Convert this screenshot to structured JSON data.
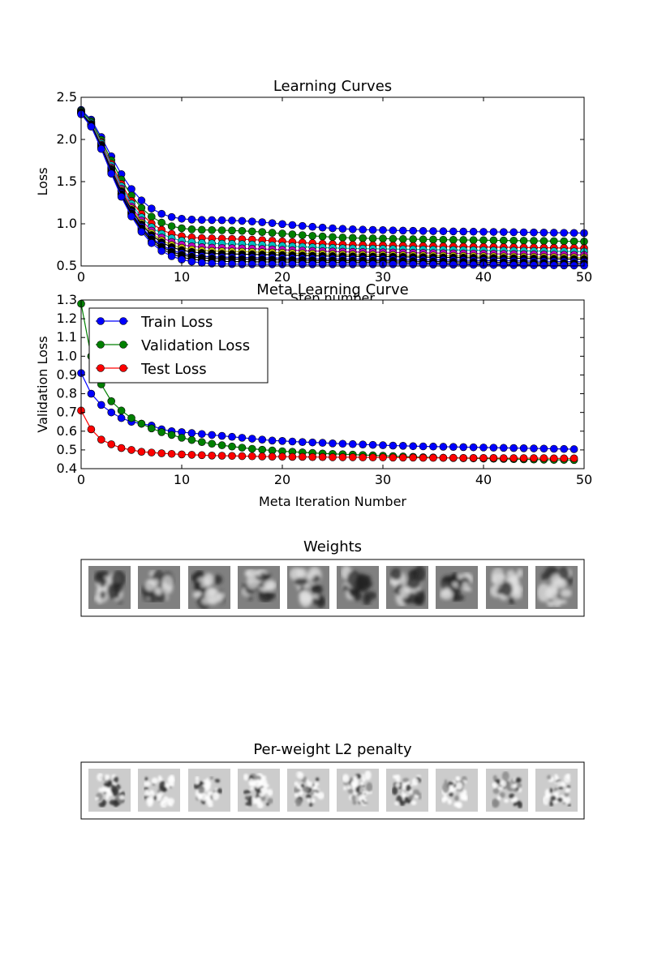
{
  "figure_note": "",
  "chart_data": [
    {
      "type": "line",
      "title": "Learning Curves",
      "xlabel": "Step number",
      "ylabel": "Loss",
      "xlim": [
        0,
        50
      ],
      "ylim": [
        0.5,
        2.5
      ],
      "xticks": [
        "0",
        "10",
        "20",
        "30",
        "40",
        "50"
      ],
      "yticks": [
        "0.5",
        "1.0",
        "1.5",
        "2.0",
        "2.5"
      ],
      "grid": false,
      "marker": "circle",
      "series_note": "",
      "series": [
        {
          "color": "#0000ff",
          "start": 2.35,
          "end": 0.92,
          "k": 0.55,
          "bump": 0.12
        },
        {
          "color": "#008000",
          "start": 2.34,
          "end": 0.82,
          "k": 0.55,
          "bump": 0.1
        },
        {
          "color": "#ff0000",
          "start": 2.33,
          "end": 0.74,
          "k": 0.55,
          "bump": 0.08
        },
        {
          "color": "#00bfbf",
          "start": 2.33,
          "end": 0.7,
          "k": 0.55,
          "bump": 0.06
        },
        {
          "color": "#bf00bf",
          "start": 2.32,
          "end": 0.66,
          "k": 0.55,
          "bump": 0.05
        },
        {
          "color": "#bfbf00",
          "start": 2.32,
          "end": 0.63,
          "k": 0.55,
          "bump": 0.04
        },
        {
          "color": "#000000",
          "start": 2.32,
          "end": 0.61,
          "k": 0.55,
          "bump": 0.03
        },
        {
          "color": "#0000ff",
          "start": 2.31,
          "end": 0.58,
          "k": 0.55,
          "bump": 0.02
        },
        {
          "color": "#000000",
          "start": 2.31,
          "end": 0.56,
          "k": 0.55,
          "bump": 0.02
        },
        {
          "color": "#000000",
          "start": 2.31,
          "end": 0.54,
          "k": 0.55,
          "bump": 0.01
        },
        {
          "color": "#0000ff",
          "start": 2.3,
          "end": 0.52,
          "k": 0.55,
          "bump": 0.0
        }
      ]
    },
    {
      "type": "line",
      "title": "Meta Learning Curve",
      "xlabel": "Meta Iteration Number",
      "ylabel": "Validation Loss",
      "xlim": [
        0,
        50
      ],
      "ylim": [
        0.4,
        1.3
      ],
      "xticks": [
        "0",
        "10",
        "20",
        "30",
        "40",
        "50"
      ],
      "yticks": [
        "0.4",
        "0.5",
        "0.6",
        "0.7",
        "0.8",
        "0.9",
        "1.0",
        "1.1",
        "1.2",
        "1.3"
      ],
      "grid": false,
      "legend": "upper-left",
      "series": [
        {
          "name": "Train Loss",
          "color": "#0000ff",
          "x": [
            0,
            1,
            2,
            3,
            4,
            5,
            6,
            7,
            8,
            9,
            10,
            11,
            12,
            13,
            14,
            15,
            16,
            17,
            18,
            19,
            20,
            21,
            22,
            23,
            24,
            25,
            26,
            27,
            28,
            29,
            30,
            31,
            32,
            33,
            34,
            35,
            36,
            37,
            38,
            39,
            40,
            41,
            42,
            43,
            44,
            45,
            46,
            47,
            48,
            49
          ],
          "values": [
            0.91,
            0.8,
            0.74,
            0.7,
            0.67,
            0.65,
            0.64,
            0.63,
            0.61,
            0.6,
            0.595,
            0.59,
            0.585,
            0.58,
            0.575,
            0.57,
            0.565,
            0.56,
            0.555,
            0.55,
            0.548,
            0.545,
            0.542,
            0.54,
            0.538,
            0.535,
            0.533,
            0.531,
            0.529,
            0.527,
            0.525,
            0.523,
            0.522,
            0.52,
            0.519,
            0.518,
            0.517,
            0.516,
            0.515,
            0.514,
            0.513,
            0.512,
            0.511,
            0.51,
            0.509,
            0.508,
            0.507,
            0.506,
            0.505,
            0.504
          ]
        },
        {
          "name": "Validation Loss",
          "color": "#008000",
          "x": [
            0,
            1,
            2,
            3,
            4,
            5,
            6,
            7,
            8,
            9,
            10,
            11,
            12,
            13,
            14,
            15,
            16,
            17,
            18,
            19,
            20,
            21,
            22,
            23,
            24,
            25,
            26,
            27,
            28,
            29,
            30,
            31,
            32,
            33,
            34,
            35,
            36,
            37,
            38,
            39,
            40,
            41,
            42,
            43,
            44,
            45,
            46,
            47,
            48,
            49
          ],
          "values": [
            1.28,
            1.0,
            0.85,
            0.76,
            0.71,
            0.67,
            0.64,
            0.615,
            0.595,
            0.58,
            0.565,
            0.553,
            0.542,
            0.533,
            0.525,
            0.518,
            0.512,
            0.506,
            0.501,
            0.497,
            0.493,
            0.49,
            0.487,
            0.484,
            0.481,
            0.479,
            0.477,
            0.475,
            0.473,
            0.471,
            0.469,
            0.467,
            0.465,
            0.463,
            0.461,
            0.46,
            0.458,
            0.457,
            0.456,
            0.455,
            0.454,
            0.453,
            0.452,
            0.451,
            0.45,
            0.449,
            0.448,
            0.447,
            0.447,
            0.446
          ]
        },
        {
          "name": "Test Loss",
          "color": "#ff0000",
          "x": [
            0,
            1,
            2,
            3,
            4,
            5,
            6,
            7,
            8,
            9,
            10,
            11,
            12,
            13,
            14,
            15,
            16,
            17,
            18,
            19,
            20,
            21,
            22,
            23,
            24,
            25,
            26,
            27,
            28,
            29,
            30,
            31,
            32,
            33,
            34,
            35,
            36,
            37,
            38,
            39,
            40,
            41,
            42,
            43,
            44,
            45,
            46,
            47,
            48,
            49
          ],
          "values": [
            0.71,
            0.61,
            0.555,
            0.53,
            0.51,
            0.5,
            0.49,
            0.486,
            0.482,
            0.479,
            0.476,
            0.474,
            0.472,
            0.47,
            0.469,
            0.468,
            0.467,
            0.466,
            0.465,
            0.464,
            0.464,
            0.463,
            0.463,
            0.462,
            0.462,
            0.461,
            0.461,
            0.461,
            0.46,
            0.46,
            0.46,
            0.459,
            0.459,
            0.459,
            0.458,
            0.458,
            0.458,
            0.458,
            0.457,
            0.457,
            0.457,
            0.457,
            0.456,
            0.456,
            0.456,
            0.456,
            0.456,
            0.455,
            0.455,
            0.455
          ]
        }
      ]
    }
  ],
  "weights_panel": {
    "title": "Weights",
    "count": 10,
    "background": "#808080"
  },
  "penalty_panel": {
    "title": "Per-weight L2 penalty",
    "count": 10,
    "background": "#cccccc"
  }
}
